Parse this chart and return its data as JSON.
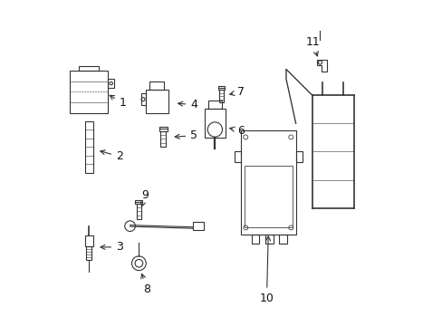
{
  "background_color": "#ffffff",
  "fig_width": 4.89,
  "fig_height": 3.6,
  "dpi": 100,
  "line_color": "#333333",
  "label_fontsize": 9,
  "label_color": "#111111",
  "parts_info": {
    "1": [
      0.195,
      0.685,
      0.145,
      0.715
    ],
    "2": [
      0.185,
      0.52,
      0.115,
      0.54
    ],
    "3": [
      0.185,
      0.24,
      0.115,
      0.24
    ],
    "4": [
      0.415,
      0.68,
      0.355,
      0.685
    ],
    "5": [
      0.415,
      0.585,
      0.345,
      0.58
    ],
    "6": [
      0.56,
      0.6,
      0.515,
      0.61
    ],
    "7": [
      0.56,
      0.72,
      0.515,
      0.71
    ],
    "8": [
      0.27,
      0.11,
      0.25,
      0.168
    ],
    "9": [
      0.265,
      0.4,
      0.25,
      0.355
    ],
    "10": [
      0.64,
      0.082,
      0.645,
      0.285
    ],
    "11": [
      0.782,
      0.875,
      0.8,
      0.82
    ]
  }
}
